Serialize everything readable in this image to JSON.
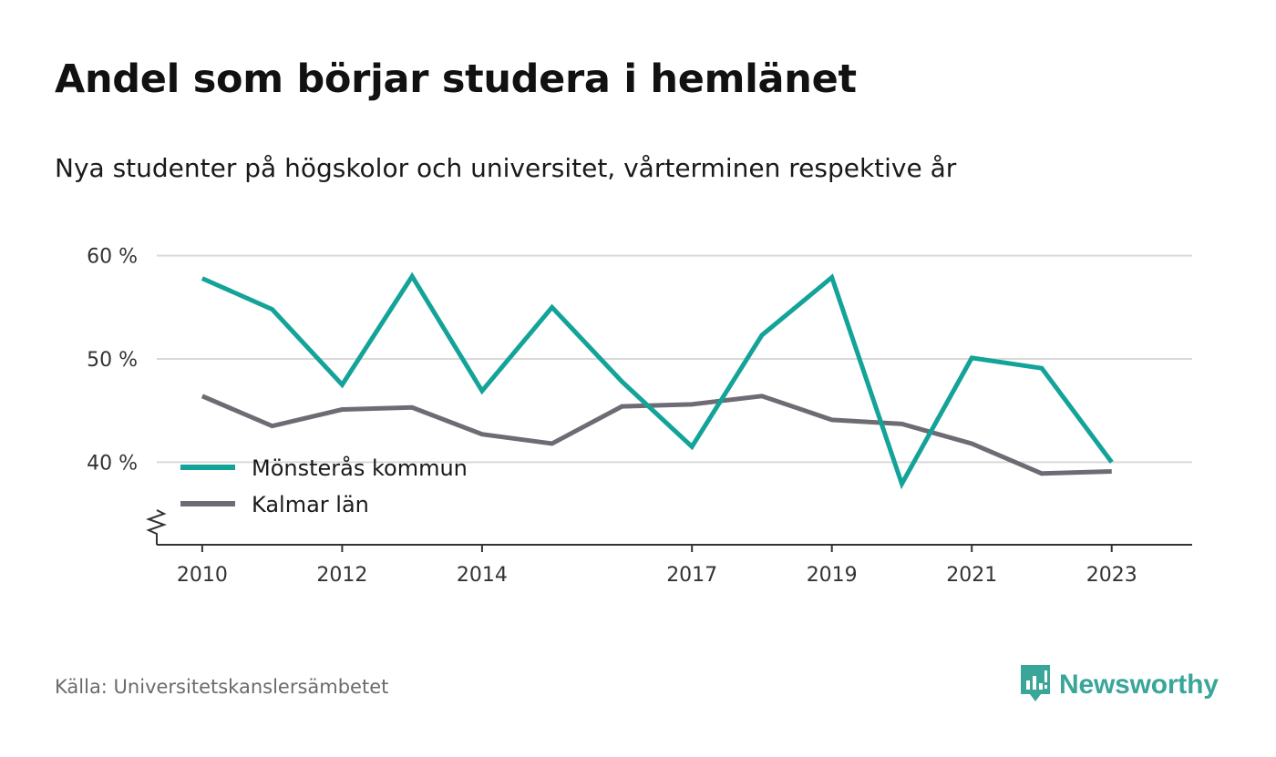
{
  "title": "Andel som börjar studera i hemlänet",
  "subtitle": "Nya studenter på högskolor och universitet, vårterminen respektive år",
  "source": "Källa: Universitetskanslersämbetet",
  "brand": {
    "name": "Newsworthy",
    "icon": "newsworthy-logo-icon",
    "color": "#3aa69a"
  },
  "chart_data": {
    "type": "line",
    "x": [
      2010,
      2011,
      2012,
      2013,
      2014,
      2015,
      2016,
      2017,
      2018,
      2019,
      2020,
      2021,
      2022,
      2023
    ],
    "x_ticks": [
      2010,
      2012,
      2014,
      2017,
      2019,
      2021,
      2023
    ],
    "x_tick_labels": [
      "2010",
      "2012",
      "2014",
      "2017",
      "2019",
      "2021",
      "2023"
    ],
    "y_ticks": [
      40,
      50,
      60
    ],
    "y_tick_labels": [
      "40 %",
      "50 %",
      "60 %"
    ],
    "ylim": [
      32,
      62
    ],
    "xlim": [
      2009.35,
      2024.15
    ],
    "axis_break": true,
    "grid": true,
    "legend_position": "bottom-left",
    "series": [
      {
        "name": "Mönsterås kommun",
        "color": "#13a399",
        "values": [
          57.8,
          54.8,
          47.5,
          58.0,
          46.9,
          55.0,
          47.8,
          41.5,
          52.3,
          57.9,
          37.9,
          50.1,
          49.1,
          40.0
        ]
      },
      {
        "name": "Kalmar län",
        "color": "#6e6b74",
        "values": [
          46.4,
          43.5,
          45.1,
          45.3,
          42.7,
          41.8,
          45.4,
          45.6,
          46.4,
          44.1,
          43.7,
          41.8,
          38.9,
          39.1
        ]
      }
    ]
  }
}
